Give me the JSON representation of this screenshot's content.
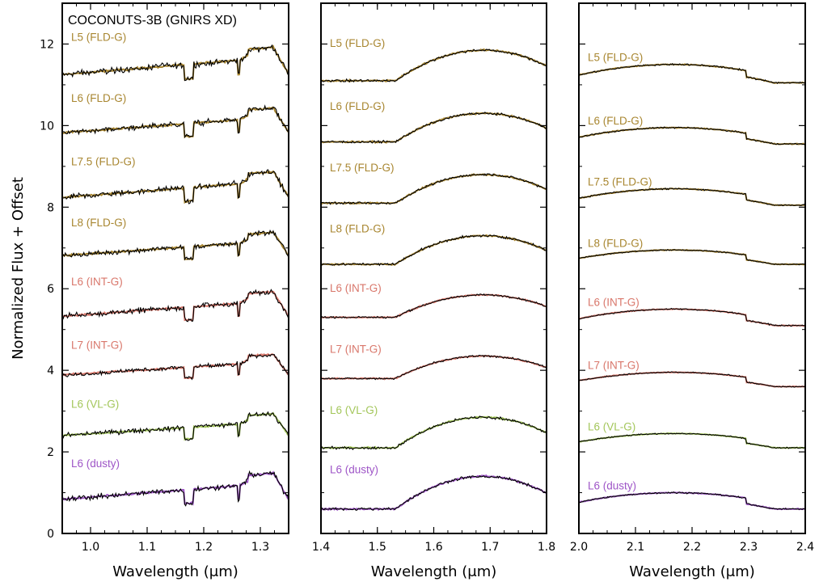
{
  "chart_data": {
    "type": "line",
    "title": "COCONUTS-3B (GNIRS XD)",
    "ylabel": "Normalized Flux + Offset",
    "ylim": [
      0,
      13
    ],
    "yticks": [
      0,
      2,
      4,
      6,
      8,
      10,
      12
    ],
    "panels": [
      {
        "band": "J",
        "xlabel": "Wavelength (μm)",
        "xlim": [
          0.95,
          1.35
        ],
        "xticks": [
          1.0,
          1.1,
          1.2,
          1.3
        ],
        "xtick_labels": [
          "1.0",
          "1.1",
          "1.2",
          "1.3"
        ]
      },
      {
        "band": "H",
        "xlabel": "Wavelength (μm)",
        "xlim": [
          1.4,
          1.8
        ],
        "xticks": [
          1.4,
          1.5,
          1.6,
          1.7,
          1.8
        ],
        "xtick_labels": [
          "1.4",
          "1.5",
          "1.6",
          "1.7",
          "1.8"
        ]
      },
      {
        "band": "K",
        "xlabel": "Wavelength (μm)",
        "xlim": [
          2.0,
          2.4
        ],
        "xticks": [
          2.0,
          2.1,
          2.2,
          2.3,
          2.4
        ],
        "xtick_labels": [
          "2.0",
          "2.1",
          "2.2",
          "2.3",
          "2.4"
        ]
      }
    ],
    "series": [
      {
        "name": "L5 (FLD-G)",
        "color": "#a88630",
        "offsets": [
          11.0,
          11.1,
          11.05
        ],
        "peaks": [
          12.0,
          11.85,
          11.5
        ]
      },
      {
        "name": "L6 (FLD-G)",
        "color": "#a88630",
        "offsets": [
          9.6,
          9.6,
          9.55
        ],
        "peaks": [
          10.5,
          10.3,
          9.95
        ]
      },
      {
        "name": "L7.5 (FLD-G)",
        "color": "#a88630",
        "offsets": [
          8.0,
          8.1,
          8.05
        ],
        "peaks": [
          8.95,
          8.8,
          8.45
        ]
      },
      {
        "name": "L8 (FLD-G)",
        "color": "#a88630",
        "offsets": [
          6.6,
          6.6,
          6.6
        ],
        "peaks": [
          7.45,
          7.3,
          6.95
        ]
      },
      {
        "name": "L6 (INT-G)",
        "color": "#d9776b",
        "offsets": [
          5.1,
          5.3,
          5.1
        ],
        "peaks": [
          6.0,
          5.85,
          5.5
        ]
      },
      {
        "name": "L7 (INT-G)",
        "color": "#d9776b",
        "offsets": [
          3.7,
          3.8,
          3.6
        ],
        "peaks": [
          4.45,
          4.35,
          3.95
        ]
      },
      {
        "name": "L6 (VL-G)",
        "color": "#a3c65a",
        "offsets": [
          2.2,
          2.1,
          2.1
        ],
        "peaks": [
          3.0,
          2.85,
          2.45
        ]
      },
      {
        "name": "L6 (dusty)",
        "color": "#9e55c7",
        "offsets": [
          0.6,
          0.6,
          0.6
        ],
        "peaks": [
          1.55,
          1.4,
          1.0
        ]
      }
    ],
    "observed_color": "#000000"
  }
}
